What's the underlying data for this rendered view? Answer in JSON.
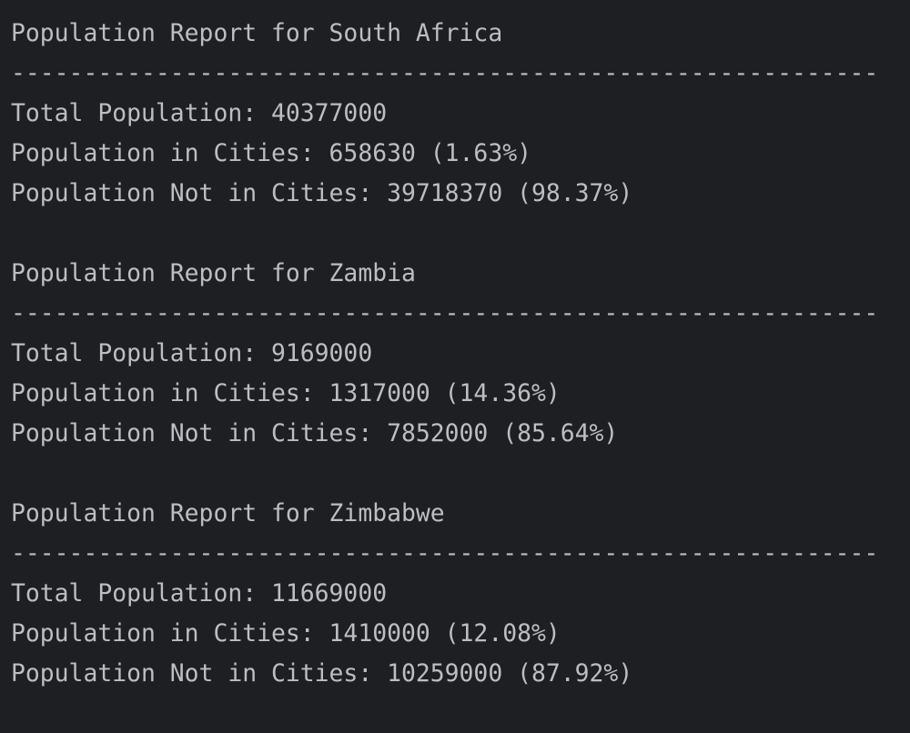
{
  "reports": [
    {
      "title": "Population Report for South Africa",
      "separator": "------------------------------------------------------------",
      "lines": [
        "Total Population: 40377000",
        "Population in Cities: 658630 (1.63%)",
        "Population Not in Cities: 39718370 (98.37%)"
      ]
    },
    {
      "title": "Population Report for Zambia",
      "separator": "------------------------------------------------------------",
      "lines": [
        "Total Population: 9169000",
        "Population in Cities: 1317000 (14.36%)",
        "Population Not in Cities: 7852000 (85.64%)"
      ]
    },
    {
      "title": "Population Report for Zimbabwe",
      "separator": "------------------------------------------------------------",
      "lines": [
        "Total Population: 11669000",
        "Population in Cities: 1410000 (12.08%)",
        "Population Not in Cities: 10259000 (87.92%)"
      ]
    }
  ]
}
